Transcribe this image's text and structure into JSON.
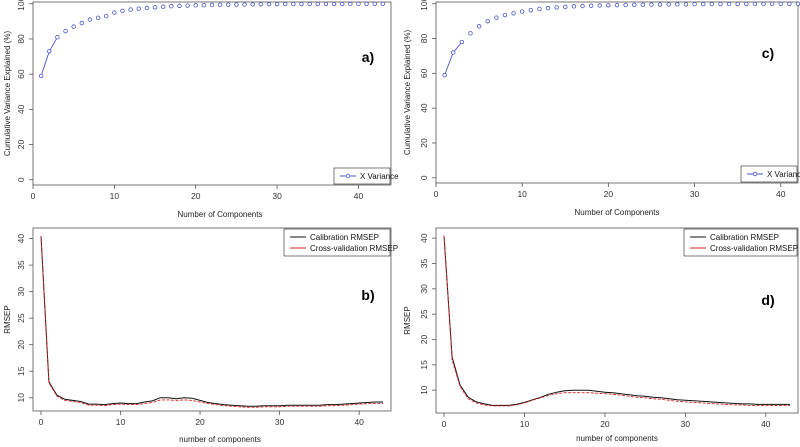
{
  "chart_data": [
    {
      "panel_label": "a)",
      "type": "line",
      "xlabel": "Number of Components",
      "ylabel": "Cumulative Variance Explained (%)",
      "xlim": [
        0,
        44
      ],
      "ylim": [
        -3,
        101
      ],
      "xticks": [
        0,
        10,
        20,
        30,
        40
      ],
      "yticks": [
        0,
        20,
        40,
        60,
        80,
        100
      ],
      "legend": "bottom-right",
      "series": [
        {
          "name": "X Variance",
          "color": "#4a55cc",
          "marker": "open-circle",
          "x": [
            1,
            2,
            3,
            4,
            5,
            6,
            7,
            8,
            9,
            10,
            11,
            12,
            13,
            14,
            15,
            16,
            17,
            18,
            19,
            20,
            21,
            22,
            23,
            24,
            25,
            26,
            27,
            28,
            29,
            30,
            31,
            32,
            33,
            34,
            35,
            36,
            37,
            38,
            39,
            40,
            41,
            42,
            43
          ],
          "y": [
            59,
            73,
            81,
            84.5,
            87,
            89,
            91,
            92,
            93,
            95,
            96,
            96.7,
            97.2,
            97.6,
            98,
            98.3,
            98.6,
            98.8,
            99,
            99.1,
            99.2,
            99.3,
            99.4,
            99.5,
            99.55,
            99.6,
            99.65,
            99.7,
            99.74,
            99.78,
            99.8,
            99.82,
            99.85,
            99.87,
            99.89,
            99.9,
            99.92,
            99.93,
            99.95,
            99.96,
            99.97,
            99.98,
            99.99
          ]
        }
      ]
    },
    {
      "panel_label": "c)",
      "type": "line",
      "xlabel": "Number of Components",
      "ylabel": "Cumulative Variance Explained (%)",
      "xlim": [
        0,
        42
      ],
      "ylim": [
        -3,
        101
      ],
      "xticks": [
        0,
        10,
        20,
        30,
        40
      ],
      "yticks": [
        0,
        20,
        40,
        60,
        80,
        100
      ],
      "legend": "bottom-right",
      "series": [
        {
          "name": "X Variance",
          "color": "#4a55cc",
          "marker": "open-circle",
          "x": [
            1,
            2,
            3,
            4,
            5,
            6,
            7,
            8,
            9,
            10,
            11,
            12,
            13,
            14,
            15,
            16,
            17,
            18,
            19,
            20,
            21,
            22,
            23,
            24,
            25,
            26,
            27,
            28,
            29,
            30,
            31,
            32,
            33,
            34,
            35,
            36,
            37,
            38,
            39,
            40,
            41,
            42
          ],
          "y": [
            59,
            72,
            78,
            83,
            87,
            90,
            92,
            93.5,
            94.5,
            95.5,
            96.3,
            97,
            97.5,
            97.9,
            98.2,
            98.5,
            98.7,
            98.9,
            99,
            99.1,
            99.2,
            99.3,
            99.4,
            99.45,
            99.5,
            99.55,
            99.6,
            99.65,
            99.7,
            99.74,
            99.78,
            99.8,
            99.83,
            99.86,
            99.88,
            99.9,
            99.92,
            99.94,
            99.95,
            99.97,
            99.98,
            99.99
          ]
        }
      ]
    },
    {
      "panel_label": "b)",
      "type": "line",
      "xlabel": "number of components",
      "ylabel": "RMSEP",
      "xlim": [
        -1,
        44
      ],
      "ylim": [
        7.5,
        42
      ],
      "xticks": [
        0,
        10,
        20,
        30,
        40
      ],
      "yticks": [
        10,
        15,
        20,
        25,
        30,
        35,
        40
      ],
      "legend": "top-right",
      "series": [
        {
          "name": "Calibration RMSEP",
          "color": "#111111",
          "x": [
            0,
            1,
            2,
            3,
            4,
            5,
            6,
            7,
            8,
            9,
            10,
            11,
            12,
            13,
            14,
            15,
            16,
            17,
            18,
            19,
            20,
            21,
            22,
            23,
            24,
            25,
            26,
            27,
            28,
            29,
            30,
            31,
            32,
            33,
            34,
            35,
            36,
            37,
            38,
            39,
            40,
            41,
            42,
            43
          ],
          "y": [
            40.5,
            13,
            10.5,
            9.7,
            9.5,
            9.3,
            8.8,
            8.8,
            8.7,
            8.9,
            9,
            8.9,
            8.9,
            9.2,
            9.4,
            10,
            10,
            9.8,
            10,
            9.9,
            9.5,
            9.1,
            8.9,
            8.7,
            8.6,
            8.5,
            8.4,
            8.4,
            8.5,
            8.5,
            8.5,
            8.6,
            8.6,
            8.6,
            8.6,
            8.6,
            8.7,
            8.7,
            8.8,
            8.9,
            9,
            9.1,
            9.2,
            9.2
          ]
        },
        {
          "name": "Cross-validation RMSEP",
          "color": "#dd2222",
          "x": [
            0,
            1,
            2,
            3,
            4,
            5,
            6,
            7,
            8,
            9,
            10,
            11,
            12,
            13,
            14,
            15,
            16,
            17,
            18,
            19,
            20,
            21,
            22,
            23,
            24,
            25,
            26,
            27,
            28,
            29,
            30,
            31,
            32,
            33,
            34,
            35,
            36,
            37,
            38,
            39,
            40,
            41,
            42,
            43
          ],
          "y": [
            40.5,
            12.8,
            10.3,
            9.5,
            9.3,
            9.1,
            8.6,
            8.6,
            8.5,
            8.7,
            8.8,
            8.7,
            8.7,
            8.9,
            9.1,
            9.6,
            9.6,
            9.5,
            9.6,
            9.5,
            9.2,
            8.9,
            8.7,
            8.5,
            8.4,
            8.3,
            8.2,
            8.2,
            8.3,
            8.3,
            8.3,
            8.4,
            8.4,
            8.4,
            8.4,
            8.4,
            8.5,
            8.5,
            8.6,
            8.7,
            8.8,
            8.9,
            8.9,
            8.9
          ]
        }
      ]
    },
    {
      "panel_label": "d)",
      "type": "line",
      "xlabel": "number of components",
      "ylabel": "RMSEP",
      "xlim": [
        -1,
        44
      ],
      "ylim": [
        5.5,
        42
      ],
      "xticks": [
        0,
        10,
        20,
        30,
        40
      ],
      "yticks": [
        10,
        15,
        20,
        25,
        30,
        35,
        40
      ],
      "legend": "top-right",
      "series": [
        {
          "name": "Calibration RMSEP",
          "color": "#111111",
          "x": [
            0,
            1,
            2,
            3,
            4,
            5,
            6,
            7,
            8,
            9,
            10,
            11,
            12,
            13,
            14,
            15,
            16,
            17,
            18,
            19,
            20,
            21,
            22,
            23,
            24,
            25,
            26,
            27,
            28,
            29,
            30,
            31,
            32,
            33,
            34,
            35,
            36,
            37,
            38,
            39,
            40,
            41,
            42,
            43
          ],
          "y": [
            40.5,
            16.5,
            11,
            8.6,
            7.7,
            7.3,
            7,
            7,
            7,
            7.2,
            7.6,
            8.1,
            8.6,
            9.2,
            9.6,
            9.9,
            10,
            10,
            10,
            9.8,
            9.6,
            9.5,
            9.3,
            9.1,
            8.9,
            8.8,
            8.6,
            8.5,
            8.3,
            8.1,
            8,
            7.9,
            7.8,
            7.7,
            7.6,
            7.5,
            7.4,
            7.3,
            7.3,
            7.2,
            7.2,
            7.2,
            7.2,
            7.2
          ]
        },
        {
          "name": "Cross-validation RMSEP",
          "color": "#dd2222",
          "x": [
            0,
            1,
            2,
            3,
            4,
            5,
            6,
            7,
            8,
            9,
            10,
            11,
            12,
            13,
            14,
            15,
            16,
            17,
            18,
            19,
            20,
            21,
            22,
            23,
            24,
            25,
            26,
            27,
            28,
            29,
            30,
            31,
            32,
            33,
            34,
            35,
            36,
            37,
            38,
            39,
            40,
            41,
            42,
            43
          ],
          "y": [
            40.5,
            16,
            10.7,
            8.3,
            7.5,
            7.1,
            6.9,
            6.9,
            6.9,
            7.1,
            7.5,
            8,
            8.5,
            9,
            9.3,
            9.5,
            9.5,
            9.5,
            9.5,
            9.4,
            9.3,
            9.2,
            9,
            8.8,
            8.6,
            8.5,
            8.3,
            8.2,
            8,
            7.8,
            7.7,
            7.6,
            7.5,
            7.4,
            7.3,
            7.2,
            7.1,
            7.1,
            7,
            7,
            7,
            7,
            7,
            7
          ]
        }
      ]
    }
  ]
}
